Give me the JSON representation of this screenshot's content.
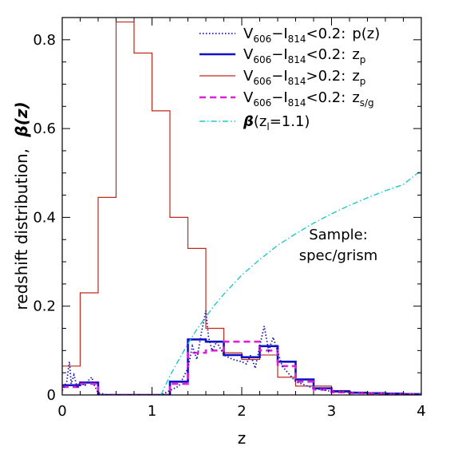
{
  "chart_data": {
    "type": "line",
    "xlabel": "z",
    "ylabel_text": "redshift distribution,",
    "ylabel_symbol": "β(z)",
    "xlim": [
      0,
      4
    ],
    "ylim": [
      0,
      0.85
    ],
    "x_ticks": [
      "0",
      "1",
      "2",
      "3",
      "4"
    ],
    "y_ticks": [
      "0",
      "0.2",
      "0.4",
      "0.6",
      "0.8"
    ],
    "annotation_line1": "Sample:",
    "annotation_line2": "spec/grism",
    "legend": [
      {
        "pre": "V",
        "s1": "606",
        "mid": "−I",
        "s2": "814",
        "cond": "<0.2:",
        "tail": "p(z)",
        "tail_sub": ""
      },
      {
        "pre": "V",
        "s1": "606",
        "mid": "−I",
        "s2": "814",
        "cond": "<0.2:",
        "tail": "z",
        "tail_sub": "p"
      },
      {
        "pre": "V",
        "s1": "606",
        "mid": "−I",
        "s2": "814",
        "cond": ">0.2:",
        "tail": "z",
        "tail_sub": "p"
      },
      {
        "pre": "V",
        "s1": "606",
        "mid": "−I",
        "s2": "814",
        "cond": "<0.2:",
        "tail": "z",
        "tail_sub": "s/g"
      },
      {
        "pre": "β",
        "s1": "",
        "mid": "(z",
        "s2": "l",
        "cond": "=1.1)",
        "tail": "",
        "tail_sub": ""
      }
    ],
    "colors": {
      "pz": "#1a1aa8",
      "zp_blue": "#1010c8",
      "zp_red": "#c0281c",
      "zsg": "#e020d8",
      "beta": "#20c8c8",
      "black": "#000000"
    },
    "series": [
      {
        "key": "zp_red",
        "style": "step",
        "edges": [
          0,
          0.2,
          0.4,
          0.6,
          0.8,
          1.0,
          1.2,
          1.4,
          1.6,
          1.8,
          2.0,
          2.2,
          2.4,
          2.6,
          2.8,
          3.0,
          3.2,
          3.4,
          3.6,
          3.8,
          4.0
        ],
        "values": [
          0.065,
          0.23,
          0.445,
          0.84,
          0.77,
          0.64,
          0.4,
          0.33,
          0.15,
          0.095,
          0.08,
          0.09,
          0.04,
          0.02,
          0.02,
          0.01,
          0.005,
          0.004,
          0.003,
          0.002
        ]
      },
      {
        "key": "zp_blue",
        "style": "step",
        "edges": [
          0,
          0.2,
          0.4,
          0.6,
          0.8,
          1.0,
          1.2,
          1.4,
          1.6,
          1.8,
          2.0,
          2.2,
          2.4,
          2.6,
          2.8,
          3.0,
          3.2,
          3.4,
          3.6,
          3.8,
          4.0
        ],
        "values": [
          0.022,
          0.028,
          0.0,
          0.0,
          0.0,
          0.0,
          0.03,
          0.125,
          0.12,
          0.09,
          0.085,
          0.11,
          0.075,
          0.035,
          0.015,
          0.008,
          0.005,
          0.004,
          0.003,
          0.002
        ]
      },
      {
        "key": "zsg",
        "style": "step",
        "edges": [
          0,
          0.2,
          0.4,
          0.6,
          0.8,
          1.0,
          1.2,
          1.4,
          1.6,
          1.8,
          2.0,
          2.2,
          2.4,
          2.6,
          2.8,
          3.0,
          3.2,
          3.4,
          3.6,
          3.8,
          4.0
        ],
        "values": [
          0.018,
          0.025,
          0.0,
          0.0,
          0.0,
          0.0,
          0.025,
          0.095,
          0.1,
          0.12,
          0.12,
          0.1,
          0.065,
          0.03,
          0.012,
          0.006,
          0.004,
          0.003,
          0.002,
          0.001
        ]
      },
      {
        "key": "pz",
        "style": "dotted",
        "x": [
          0,
          0.05,
          0.08,
          0.1,
          0.13,
          0.17,
          0.2,
          0.25,
          0.3,
          0.33,
          0.36,
          0.4,
          0.5,
          0.8,
          1.1,
          1.3,
          1.4,
          1.45,
          1.5,
          1.55,
          1.6,
          1.63,
          1.67,
          1.72,
          1.8,
          1.9,
          2.0,
          2.05,
          2.1,
          2.15,
          2.2,
          2.25,
          2.3,
          2.35,
          2.45,
          2.6,
          2.8,
          3.0,
          3.5,
          4.0
        ],
        "y": [
          0.01,
          0.03,
          0.075,
          0.025,
          0.045,
          0.015,
          0.03,
          0.02,
          0.035,
          0.04,
          0.02,
          0.005,
          0.0,
          0.0,
          0.0,
          0.02,
          0.06,
          0.11,
          0.08,
          0.14,
          0.19,
          0.13,
          0.1,
          0.12,
          0.09,
          0.08,
          0.075,
          0.07,
          0.09,
          0.06,
          0.11,
          0.155,
          0.1,
          0.13,
          0.065,
          0.03,
          0.015,
          0.008,
          0.004,
          0.002
        ]
      },
      {
        "key": "beta",
        "style": "dashdot",
        "z_lens": 1.1,
        "x": [
          1.1,
          1.15,
          1.2,
          1.3,
          1.4,
          1.5,
          1.6,
          1.7,
          1.8,
          2.0,
          2.2,
          2.4,
          2.6,
          2.8,
          3.0,
          3.2,
          3.4,
          3.6,
          3.8,
          4.0
        ],
        "y": [
          0.0,
          0.022,
          0.043,
          0.08,
          0.115,
          0.148,
          0.176,
          0.203,
          0.227,
          0.27,
          0.305,
          0.337,
          0.363,
          0.387,
          0.408,
          0.427,
          0.444,
          0.46,
          0.474,
          0.506
        ]
      }
    ]
  }
}
